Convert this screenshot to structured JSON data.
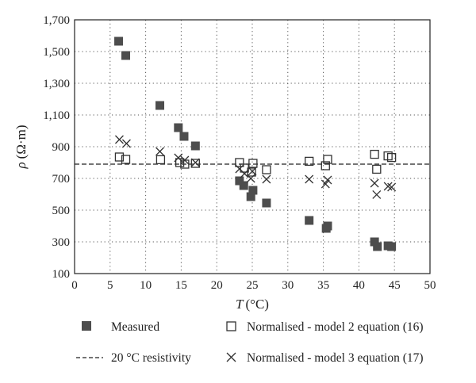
{
  "chart_data": {
    "type": "scatter",
    "xlabel_symbol": "T",
    "xlabel_unit": "(°C)",
    "ylabel_symbol": "ρ",
    "ylabel_unit": "(Ω·m)",
    "xlim": [
      0,
      50
    ],
    "ylim": [
      100,
      1700
    ],
    "xticks": [
      0,
      5,
      10,
      15,
      20,
      25,
      30,
      35,
      40,
      45,
      50
    ],
    "yticks": [
      100,
      300,
      500,
      700,
      900,
      1100,
      1300,
      1500,
      1700
    ],
    "ytick_labels": [
      "100",
      "300",
      "500",
      "700",
      "900",
      "1,100",
      "1,300",
      "1,500",
      "1,700"
    ],
    "grid": "dotted",
    "legend_position": "bottom",
    "reference_line": {
      "name": "20 °C resistivity",
      "y": 790
    },
    "series": [
      {
        "name": "Measured",
        "marker": "filled-square",
        "color": "#4d4d4d",
        "points": [
          {
            "x": 6.2,
            "y": 1565
          },
          {
            "x": 7.2,
            "y": 1475
          },
          {
            "x": 12.0,
            "y": 1160
          },
          {
            "x": 14.6,
            "y": 1020
          },
          {
            "x": 15.4,
            "y": 965
          },
          {
            "x": 17.0,
            "y": 905
          },
          {
            "x": 23.2,
            "y": 685
          },
          {
            "x": 23.8,
            "y": 655
          },
          {
            "x": 24.8,
            "y": 585
          },
          {
            "x": 25.1,
            "y": 625
          },
          {
            "x": 27.0,
            "y": 545
          },
          {
            "x": 33.0,
            "y": 435
          },
          {
            "x": 35.4,
            "y": 385
          },
          {
            "x": 35.6,
            "y": 400
          },
          {
            "x": 42.2,
            "y": 300
          },
          {
            "x": 42.6,
            "y": 270
          },
          {
            "x": 44.1,
            "y": 275
          },
          {
            "x": 44.6,
            "y": 270
          }
        ]
      },
      {
        "name": "Normalised - model 2 equation (16)",
        "marker": "open-square",
        "color": "#333333",
        "points": [
          {
            "x": 6.3,
            "y": 835
          },
          {
            "x": 7.2,
            "y": 820
          },
          {
            "x": 12.1,
            "y": 818
          },
          {
            "x": 14.8,
            "y": 800
          },
          {
            "x": 15.5,
            "y": 790
          },
          {
            "x": 17.0,
            "y": 795
          },
          {
            "x": 23.2,
            "y": 800
          },
          {
            "x": 23.9,
            "y": 765
          },
          {
            "x": 24.9,
            "y": 740
          },
          {
            "x": 25.1,
            "y": 795
          },
          {
            "x": 27.0,
            "y": 755
          },
          {
            "x": 33.0,
            "y": 808
          },
          {
            "x": 35.3,
            "y": 780
          },
          {
            "x": 35.6,
            "y": 820
          },
          {
            "x": 42.2,
            "y": 852
          },
          {
            "x": 42.5,
            "y": 758
          },
          {
            "x": 44.1,
            "y": 842
          },
          {
            "x": 44.6,
            "y": 832
          }
        ]
      },
      {
        "name": "Normalised - model 3 equation (17)",
        "marker": "cross",
        "color": "#333333",
        "points": [
          {
            "x": 6.3,
            "y": 945
          },
          {
            "x": 7.3,
            "y": 920
          },
          {
            "x": 12.0,
            "y": 870
          },
          {
            "x": 14.6,
            "y": 830
          },
          {
            "x": 15.5,
            "y": 815
          },
          {
            "x": 17.0,
            "y": 800
          },
          {
            "x": 23.2,
            "y": 760
          },
          {
            "x": 23.9,
            "y": 730
          },
          {
            "x": 24.8,
            "y": 700
          },
          {
            "x": 25.0,
            "y": 745
          },
          {
            "x": 27.0,
            "y": 695
          },
          {
            "x": 33.0,
            "y": 695
          },
          {
            "x": 35.3,
            "y": 665
          },
          {
            "x": 35.6,
            "y": 690
          },
          {
            "x": 42.2,
            "y": 670
          },
          {
            "x": 42.5,
            "y": 598
          },
          {
            "x": 44.1,
            "y": 650
          },
          {
            "x": 44.6,
            "y": 645
          }
        ]
      }
    ]
  }
}
